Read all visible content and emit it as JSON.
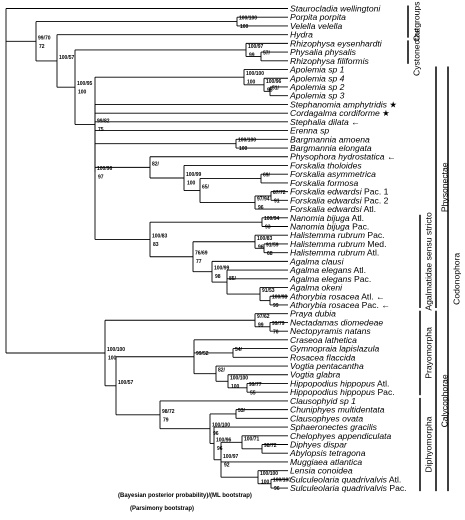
{
  "taxa": [
    {
      "name": "Staurocladia wellingtoni"
    },
    {
      "name": "Porpita porpita"
    },
    {
      "name": "Velella velella"
    },
    {
      "name": "Hydra"
    },
    {
      "name": "Rhizophysa eysenhardti"
    },
    {
      "name": "Physalia physalis"
    },
    {
      "name": "Rhizophysa filiformis"
    },
    {
      "name": "Apolemia sp 1"
    },
    {
      "name": "Apolemia sp 4"
    },
    {
      "name": "Apolemia sp 2"
    },
    {
      "name": "Apolemia sp 3"
    },
    {
      "name": "Stephanomia amphytridis",
      "mark": "★"
    },
    {
      "name": "Cordagalma cordiforme",
      "mark": "★"
    },
    {
      "name": "Stephalia dilata",
      "mark": "←"
    },
    {
      "name": "Erenna sp"
    },
    {
      "name": "Bargmannia amoena"
    },
    {
      "name": "Bargmannia elongata"
    },
    {
      "name": "Physophora hydrostatica",
      "mark": "←"
    },
    {
      "name": "Forskalia tholoides"
    },
    {
      "name": "Forskalia asymmetrica"
    },
    {
      "name": "Forskalia formosa"
    },
    {
      "name": "Forskalia edwardsi",
      "suffix": "Pac. 1"
    },
    {
      "name": "Forskalia edwardsi",
      "suffix": "Pac. 2"
    },
    {
      "name": "Forskalia edwardsi",
      "suffix": "Atl."
    },
    {
      "name": "Nanomia bijuga",
      "suffix": "Atl."
    },
    {
      "name": "Nanomia bijuga",
      "suffix": "Pac."
    },
    {
      "name": "Halistemma rubrum",
      "suffix": "Pac."
    },
    {
      "name": "Halistemma rubrum",
      "suffix": "Med."
    },
    {
      "name": "Halistemma rubrum",
      "suffix": "Atl."
    },
    {
      "name": "Agalma clausi"
    },
    {
      "name": "Agalma elegans",
      "suffix": "Atl."
    },
    {
      "name": "Agalma elegans",
      "suffix": "Pac."
    },
    {
      "name": "Agalma okeni"
    },
    {
      "name": "Athorybia rosacea",
      "suffix": "Atl.",
      "mark": "←"
    },
    {
      "name": "Athorybia rosacea",
      "suffix": "Pac.",
      "mark": "←"
    },
    {
      "name": "Praya dubia"
    },
    {
      "name": "Nectadamas diomedeae"
    },
    {
      "name": "Nectopyramis natans"
    },
    {
      "name": "Craseoa lathetica"
    },
    {
      "name": "Gymnopraia lapislazula"
    },
    {
      "name": "Rosacea flaccida"
    },
    {
      "name": "Vogtia pentacantha"
    },
    {
      "name": "Vogtia glabra"
    },
    {
      "name": "Hippopodius hippopus",
      "suffix": "Atl."
    },
    {
      "name": "Hippopodius hippopus",
      "suffix": "Pac."
    },
    {
      "name": "Clausophyid sp 1"
    },
    {
      "name": "Chuniphyes multidentata"
    },
    {
      "name": "Clausophyes ovata"
    },
    {
      "name": "Sphaeronectes gracilis"
    },
    {
      "name": "Chelophyes appendiculata"
    },
    {
      "name": "Diphyes dispar"
    },
    {
      "name": "Abylopsis tetragona"
    },
    {
      "name": "Muggiaea atlantica"
    },
    {
      "name": "Lensia conoidea"
    },
    {
      "name": "Sulculeolaria quadrivalvis",
      "suffix": "Atl."
    },
    {
      "name": "Sulculeolaria quadrivalvis",
      "suffix": "Pac."
    }
  ],
  "supports": [
    {
      "above": "100/100",
      "below": "100"
    },
    {
      "above": "99/70",
      "below": "72"
    },
    {
      "above": "100/97",
      "below": "99"
    },
    {
      "above": "57/",
      "below": ""
    },
    {
      "above": "100/96",
      "below": "98"
    },
    {
      "above": "51/",
      "below": ""
    },
    {
      "above": "100/100",
      "below": "100"
    },
    {
      "above": "100/95",
      "below": "100"
    },
    {
      "above": "100/96",
      "below": "97"
    },
    {
      "above": "100/100",
      "below": "100"
    },
    {
      "above": "82/",
      "below": ""
    },
    {
      "above": "100/99",
      "below": "100"
    },
    {
      "above": "69/",
      "below": ""
    },
    {
      "above": "65/",
      "below": ""
    },
    {
      "above": "87/72",
      "below": "91"
    },
    {
      "above": "97/94",
      "below": "96"
    },
    {
      "above": "94/52",
      "below": "58"
    },
    {
      "above": "99/82",
      "below": "75"
    },
    {
      "above": "100/94",
      "below": "93"
    },
    {
      "above": "100/83",
      "below": "83"
    },
    {
      "above": "100/83",
      "below": "96"
    },
    {
      "above": "91/59",
      "below": "68"
    },
    {
      "above": "76/69",
      "below": "77"
    },
    {
      "above": "100/99",
      "below": "98"
    },
    {
      "above": "85/",
      "below": ""
    },
    {
      "above": "91/53",
      "below": ""
    },
    {
      "above": "100/98",
      "below": "99"
    },
    {
      "above": "97/62",
      "below": "99"
    },
    {
      "above": "99/79",
      "below": "70"
    },
    {
      "above": "54/",
      "below": ""
    },
    {
      "above": "82/",
      "below": ""
    },
    {
      "above": "100/100",
      "below": "100"
    },
    {
      "above": "99/77",
      "below": "55"
    },
    {
      "above": "100/100",
      "below": "100"
    },
    {
      "above": "100/57",
      "below": ""
    },
    {
      "above": "99/52",
      "below": ""
    },
    {
      "above": "53/",
      "below": ""
    },
    {
      "above": "100/100",
      "below": "96"
    },
    {
      "above": "100/71",
      "below": ""
    },
    {
      "above": "98/72",
      "below": ""
    },
    {
      "above": "100/97",
      "below": "92"
    },
    {
      "above": "100/100",
      "below": "100"
    },
    {
      "above": "100/100",
      "below": "96"
    },
    {
      "above": "100/96",
      "below": "96"
    },
    {
      "above": "98/72",
      "below": "79"
    }
  ],
  "groups": [
    {
      "label": "Outgroups"
    },
    {
      "label": "Cystonectae"
    },
    {
      "label": "Codonophora"
    },
    {
      "label": "Physonectae"
    },
    {
      "label": "Agalmatidae sensu stricto"
    },
    {
      "label": "Calycophorae"
    },
    {
      "label": "Prayomorpha"
    },
    {
      "label": "Diphyomorpha"
    }
  ],
  "legend": {
    "line1": "(Bayesian posterior probability)/(ML bootstrap)",
    "line2": "(Parsimony bootstrap)"
  }
}
